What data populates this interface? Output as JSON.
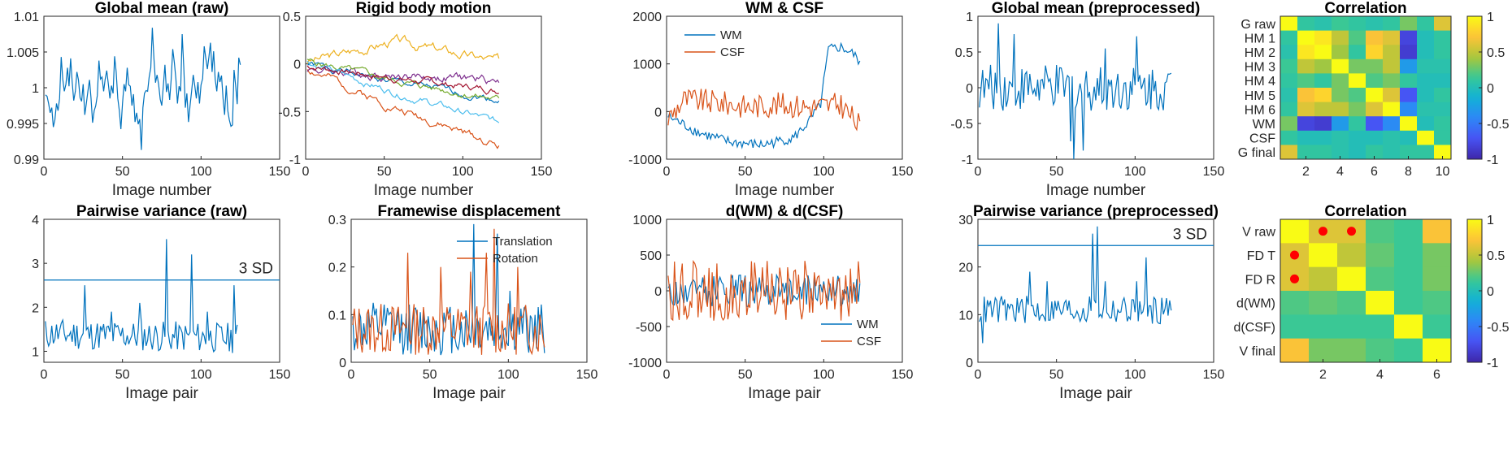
{
  "colors": {
    "c1": "#0072BD",
    "c2": "#D95319",
    "c3": "#EDB120",
    "c4": "#7E2F8E",
    "c5": "#77AC30",
    "c6": "#4DBEEE",
    "c7": "#A2142F",
    "sd_line": "#0072BD",
    "marker": "#FF0000"
  },
  "chart_data": [
    {
      "id": "p1",
      "type": "line",
      "title": "Global mean (raw)",
      "xlabel": "Image number",
      "ylabel": "",
      "xlim": [
        0,
        150
      ],
      "ylim": [
        0.99,
        1.01
      ],
      "xticks": [
        0,
        50,
        100,
        150
      ],
      "xticklabels": [
        "0",
        "50",
        "100",
        "150"
      ],
      "yticks": [
        0.99,
        0.995,
        1,
        1.005,
        1.01
      ],
      "yticklabels": [
        "0.99",
        "0.995",
        "1",
        "1.005",
        "1.01"
      ],
      "series": [
        {
          "color": "#0072BD",
          "x_start": 1,
          "values": [
            0.999,
            0.9988,
            0.9978,
            0.9965,
            0.9972,
            0.9945,
            0.9955,
            0.9978,
            0.9968,
            0.9985,
            1.0043,
            1.0012,
            0.9995,
            1.0005,
            1.0028,
            1.0002,
            1.0041,
            1.0008,
            0.9982,
            0.9995,
            1.0022,
            1.0011,
            0.9986,
            0.9981,
            1.0005,
            0.9962,
            0.9978,
            0.9995,
            1.0011,
            0.9985,
            0.9951,
            0.9968,
            0.9975,
            0.9989,
            1.0038,
            1.0012,
            1.0015,
            0.9995,
            1.0012,
            1.0024,
            1.0005,
            0.9985,
            1.0003,
            0.9992,
            1.0044,
            1.0022,
            0.9985,
            0.9968,
            0.9942,
            0.9978,
            1.0005,
            0.9995,
            1.0028,
            1.0004,
            1.0002,
            0.9975,
            0.9991,
            0.9952,
            0.9965,
            0.9949,
            0.9956,
            0.9913,
            0.9972,
            0.9992,
            0.9996,
            0.9995,
            1.0015,
            1.0028,
            1.0084,
            1.0042,
            1.0007,
            1.0018,
            1.0005,
            0.9984,
            0.9975,
            1.0002,
            1.0032,
            0.9994,
            1.0006,
            0.9983,
            1.0012,
            1.0054,
            1.0035,
            1.0012,
            0.9978,
            1.0002,
            0.9995,
            1.0075,
            1.0028,
            0.9972,
            0.9992,
            0.9952,
            0.9975,
            0.9995,
            1.0018,
            1.0003,
            0.9985,
            1.0008,
            0.9978,
            1.0004,
            1.0013,
            1.0058,
            1.0042,
            1.0026,
            1.0043,
            1.0063,
            1.0022,
            1.0051,
            1.0012,
            0.9995,
            1.0022,
            1.0008,
            1.0017,
            0.9985,
            0.9962,
            1.0003,
            0.9968,
            0.9955,
            0.9946,
            0.9948,
            1.0025,
            1.0003,
            0.9977,
            1.0042,
            1.0032
          ]
        }
      ]
    },
    {
      "id": "p2",
      "type": "line",
      "title": "Rigid body motion",
      "xlabel": "Image number",
      "ylabel": "",
      "xlim": [
        0,
        150
      ],
      "ylim": [
        -1,
        0.5
      ],
      "xticks": [
        0,
        50,
        100,
        150
      ],
      "xticklabels": [
        "0",
        "50",
        "100",
        "150"
      ],
      "yticks": [
        -1,
        -0.5,
        0,
        0.5
      ],
      "yticklabels": [
        "-1",
        "-0.5",
        "0",
        "0.5"
      ],
      "series": [
        {
          "color": "#0072BD",
          "start": 0.0,
          "end": -0.38,
          "amp": 0.05,
          "seed": 1
        },
        {
          "color": "#D95319",
          "start": -0.05,
          "end": -0.86,
          "amp": 0.06,
          "seed": 2
        },
        {
          "color": "#EDB120",
          "start": 0.02,
          "mid": 0.24,
          "end": 0.02,
          "amp": 0.07,
          "seed": 3
        },
        {
          "color": "#7E2F8E",
          "start": -0.05,
          "end": -0.18,
          "amp": 0.07,
          "seed": 4
        },
        {
          "color": "#77AC30",
          "start": 0.03,
          "end": -0.38,
          "amp": 0.05,
          "seed": 5
        },
        {
          "color": "#4DBEEE",
          "start": 0.02,
          "end": -0.62,
          "amp": 0.05,
          "seed": 6
        },
        {
          "color": "#A2142F",
          "start": -0.02,
          "end": -0.28,
          "amp": 0.05,
          "seed": 7
        }
      ]
    },
    {
      "id": "p3",
      "type": "line",
      "title": "WM & CSF",
      "xlabel": "Image number",
      "ylabel": "",
      "xlim": [
        0,
        150
      ],
      "ylim": [
        -1000,
        2000
      ],
      "xticks": [
        0,
        50,
        100,
        150
      ],
      "xticklabels": [
        "0",
        "50",
        "100",
        "150"
      ],
      "yticks": [
        -1000,
        0,
        1000,
        2000
      ],
      "yticklabels": [
        "-1000",
        "0",
        "1000",
        "2000"
      ],
      "legend": {
        "position": "top-left",
        "entries": [
          "WM",
          "CSF"
        ]
      },
      "series": [
        {
          "name": "WM",
          "color": "#0072BD",
          "knots": [
            [
              0,
              -100
            ],
            [
              20,
              -450
            ],
            [
              40,
              -650
            ],
            [
              60,
              -700
            ],
            [
              80,
              -550
            ],
            [
              90,
              -200
            ],
            [
              97,
              150
            ],
            [
              102,
              1300
            ],
            [
              110,
              1350
            ],
            [
              118,
              1200
            ],
            [
              123,
              1000
            ]
          ],
          "amp": 110,
          "seed": 8
        },
        {
          "name": "CSF",
          "color": "#D95319",
          "knots": [
            [
              0,
              -150
            ],
            [
              10,
              250
            ],
            [
              30,
              200
            ],
            [
              50,
              100
            ],
            [
              70,
              150
            ],
            [
              90,
              100
            ],
            [
              110,
              150
            ],
            [
              123,
              -350
            ]
          ],
          "amp": 260,
          "seed": 9
        }
      ]
    },
    {
      "id": "p4",
      "type": "line",
      "title": "Global mean (preprocessed)",
      "xlabel": "Image number",
      "ylabel": "",
      "xlim": [
        0,
        150
      ],
      "ylim": [
        -1,
        1
      ],
      "xticks": [
        0,
        50,
        100,
        150
      ],
      "xticklabels": [
        "0",
        "50",
        "100",
        "150"
      ],
      "yticks": [
        -1,
        -0.5,
        0,
        0.5,
        1
      ],
      "yticklabels": [
        "-1",
        "-0.5",
        "0",
        "0.5",
        "1"
      ],
      "series": [
        {
          "color": "#0072BD",
          "knots": [
            [
              0,
              0
            ],
            [
              123,
              0
            ]
          ],
          "amp": 0.32,
          "seed": 10,
          "spikes": [
            [
              12,
              0.9
            ],
            [
              22,
              0.75
            ],
            [
              58,
              -0.75
            ],
            [
              60,
              -1.0
            ],
            [
              66,
              -0.88
            ],
            [
              80,
              0.55
            ],
            [
              100,
              0.72
            ]
          ]
        }
      ]
    },
    {
      "id": "p5",
      "type": "heatmap",
      "title": "Correlation",
      "rows": [
        "G raw",
        "HM 1",
        "HM 2",
        "HM 3",
        "HM 4",
        "HM 5",
        "HM 6",
        "WM",
        "CSF",
        "G final"
      ],
      "xticks": [
        2,
        4,
        6,
        8,
        10
      ],
      "xticklabels": [
        "2",
        "4",
        "6",
        "8",
        "10"
      ],
      "clim": [
        -1,
        1
      ],
      "cbar_ticks": [
        1,
        0.5,
        0,
        -0.5,
        -1
      ],
      "cbar_ticklabels": [
        "1",
        "0.5",
        "0",
        "-0.5",
        "-1"
      ],
      "values": [
        [
          1.0,
          0.1,
          0.05,
          0.15,
          0.1,
          0.05,
          0.1,
          0.3,
          0.1,
          0.6
        ],
        [
          0.1,
          1.0,
          0.9,
          0.5,
          0.2,
          0.7,
          0.6,
          -0.8,
          0.0,
          0.1
        ],
        [
          0.05,
          0.9,
          1.0,
          0.4,
          0.1,
          0.8,
          0.5,
          -0.85,
          0.0,
          0.1
        ],
        [
          0.15,
          0.5,
          0.4,
          1.0,
          0.3,
          0.3,
          0.5,
          -0.3,
          0.05,
          0.05
        ],
        [
          0.1,
          0.2,
          0.1,
          0.3,
          1.0,
          0.2,
          0.3,
          0.1,
          0.0,
          0.0
        ],
        [
          0.05,
          0.7,
          0.8,
          0.3,
          0.2,
          1.0,
          0.6,
          -0.7,
          0.0,
          0.1
        ],
        [
          0.1,
          0.6,
          0.5,
          0.5,
          0.3,
          0.6,
          1.0,
          -0.4,
          0.05,
          0.05
        ],
        [
          0.3,
          -0.8,
          -0.85,
          -0.3,
          0.1,
          -0.7,
          -0.4,
          1.0,
          0.0,
          0.1
        ],
        [
          0.1,
          0.0,
          0.0,
          0.05,
          0.0,
          0.0,
          0.05,
          0.0,
          1.0,
          0.1
        ],
        [
          0.6,
          0.1,
          0.1,
          0.05,
          0.0,
          0.1,
          0.05,
          0.1,
          0.1,
          1.0
        ]
      ]
    },
    {
      "id": "p6",
      "type": "line",
      "title": "Pairwise variance (raw)",
      "xlabel": "Image pair",
      "ylabel": "",
      "xlim": [
        0,
        150
      ],
      "ylim": [
        0.75,
        4
      ],
      "xticks": [
        0,
        50,
        100,
        150
      ],
      "xticklabels": [
        "0",
        "50",
        "100",
        "150"
      ],
      "yticks": [
        1,
        2,
        3,
        4
      ],
      "yticklabels": [
        "1",
        "2",
        "3",
        "4"
      ],
      "hline": {
        "y": 2.62,
        "label": "3 SD"
      },
      "series": [
        {
          "color": "#0072BD",
          "knots": [
            [
              0,
              1.4
            ],
            [
              123,
              1.3
            ]
          ],
          "amp": 0.35,
          "seed": 11,
          "spikes": [
            [
              25,
              2.5
            ],
            [
              42,
              1.9
            ],
            [
              60,
              2.1
            ],
            [
              77,
              3.55
            ],
            [
              79,
              1.2
            ],
            [
              93,
              3.2
            ],
            [
              103,
              1.9
            ],
            [
              120,
              2.5
            ]
          ]
        }
      ]
    },
    {
      "id": "p7",
      "type": "line",
      "title": "Framewise displacement",
      "xlabel": "Image pair",
      "ylabel": "",
      "xlim": [
        0,
        150
      ],
      "ylim": [
        0,
        0.3
      ],
      "xticks": [
        0,
        50,
        100,
        150
      ],
      "xticklabels": [
        "0",
        "50",
        "100",
        "150"
      ],
      "yticks": [
        0,
        0.1,
        0.2,
        0.3
      ],
      "yticklabels": [
        "0",
        "0.1",
        "0.2",
        "0.3"
      ],
      "legend": {
        "position": "top-right",
        "entries": [
          "Translation",
          "Rotation"
        ]
      },
      "series": [
        {
          "name": "Translation",
          "color": "#0072BD",
          "knots": [
            [
              0,
              0.07
            ],
            [
              123,
              0.07
            ]
          ],
          "amp": 0.055,
          "seed": 12,
          "floor": 0.015,
          "spikes": [
            [
              77,
              0.29
            ],
            [
              92,
              0.27
            ],
            [
              100,
              0.15
            ]
          ]
        },
        {
          "name": "Rotation",
          "color": "#D95319",
          "knots": [
            [
              0,
              0.07
            ],
            [
              123,
              0.07
            ]
          ],
          "amp": 0.055,
          "seed": 13,
          "floor": 0.015,
          "spikes": [
            [
              35,
              0.23
            ],
            [
              56,
              0.2
            ],
            [
              75,
              0.19
            ],
            [
              85,
              0.23
            ],
            [
              90,
              0.28
            ],
            [
              105,
              0.2
            ]
          ]
        }
      ]
    },
    {
      "id": "p8",
      "type": "line",
      "title": "d(WM) & d(CSF)",
      "xlabel": "Image pair",
      "ylabel": "",
      "xlim": [
        0,
        150
      ],
      "ylim": [
        -1000,
        1000
      ],
      "xticks": [
        0,
        50,
        100,
        150
      ],
      "xticklabels": [
        "0",
        "50",
        "100",
        "150"
      ],
      "yticks": [
        -1000,
        -500,
        0,
        500,
        1000
      ],
      "yticklabels": [
        "-1000",
        "-500",
        "0",
        "500",
        "1000"
      ],
      "legend": {
        "position": "bottom-right",
        "entries": [
          "WM",
          "CSF"
        ]
      },
      "series": [
        {
          "name": "WM",
          "color": "#0072BD",
          "knots": [
            [
              0,
              0
            ],
            [
              123,
              0
            ]
          ],
          "amp": 220,
          "seed": 14,
          "alt": true
        },
        {
          "name": "CSF",
          "color": "#D95319",
          "knots": [
            [
              0,
              0
            ],
            [
              123,
              0
            ]
          ],
          "amp": 420,
          "seed": 15,
          "alt": true
        }
      ]
    },
    {
      "id": "p9",
      "type": "line",
      "title": "Pairwise variance (preprocessed)",
      "xlabel": "Image pair",
      "ylabel": "",
      "xlim": [
        0,
        150
      ],
      "ylim": [
        0,
        30
      ],
      "xticks": [
        0,
        50,
        100,
        150
      ],
      "xticklabels": [
        "0",
        "50",
        "100",
        "150"
      ],
      "yticks": [
        0,
        10,
        20,
        30
      ],
      "yticklabels": [
        "0",
        "10",
        "20",
        "30"
      ],
      "hline": {
        "y": 24.5,
        "label": "3 SD"
      },
      "series": [
        {
          "color": "#0072BD",
          "knots": [
            [
              0,
              11
            ],
            [
              123,
              11
            ]
          ],
          "amp": 3,
          "seed": 16,
          "spikes": [
            [
              2,
              4
            ],
            [
              32,
              19
            ],
            [
              43,
              17
            ],
            [
              72,
              27
            ],
            [
              75,
              28.5
            ],
            [
              80,
              17
            ],
            [
              100,
              17
            ],
            [
              106,
              22
            ]
          ]
        }
      ]
    },
    {
      "id": "p10",
      "type": "heatmap",
      "title": "Correlation",
      "rows": [
        "V raw",
        "FD T",
        "FD R",
        "d(WM)",
        "d(CSF)",
        "V final"
      ],
      "xticks": [
        2,
        4,
        6
      ],
      "xticklabels": [
        "2",
        "4",
        "6"
      ],
      "clim": [
        -1,
        1
      ],
      "cbar_ticks": [
        1,
        0.5,
        0,
        -0.5,
        -1
      ],
      "cbar_ticklabels": [
        "1",
        "0.5",
        "0",
        "-0.5",
        "-1"
      ],
      "markers": [
        [
          0,
          1
        ],
        [
          0,
          2
        ],
        [
          1,
          0
        ],
        [
          2,
          0
        ]
      ],
      "values": [
        [
          1.0,
          0.6,
          0.6,
          0.2,
          0.15,
          0.7
        ],
        [
          0.6,
          1.0,
          0.5,
          0.25,
          0.15,
          0.3
        ],
        [
          0.6,
          0.5,
          1.0,
          0.2,
          0.15,
          0.3
        ],
        [
          0.2,
          0.25,
          0.2,
          1.0,
          0.15,
          0.2
        ],
        [
          0.15,
          0.15,
          0.15,
          0.15,
          1.0,
          0.15
        ],
        [
          0.7,
          0.3,
          0.3,
          0.2,
          0.15,
          1.0
        ]
      ]
    }
  ]
}
